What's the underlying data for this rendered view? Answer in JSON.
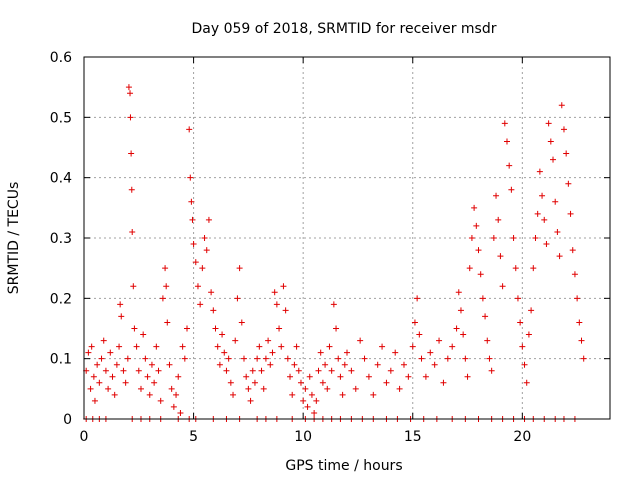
{
  "chart_data": {
    "type": "scatter",
    "title": "Day 059 of 2018, SRMTID for receiver msdr",
    "xlabel": "GPS time / hours",
    "ylabel": "SRMTID / TECUs",
    "xlim": [
      0,
      24
    ],
    "ylim": [
      0,
      0.6
    ],
    "x_ticks": [
      0,
      5,
      10,
      15,
      20
    ],
    "y_ticks": [
      0,
      0.1,
      0.2,
      0.3,
      0.4,
      0.5,
      0.6
    ],
    "x_tick_labels": [
      "0",
      "5",
      "10",
      "15",
      "20"
    ],
    "y_tick_labels": [
      "0",
      "0.1",
      "0.2",
      "0.3",
      "0.4",
      "0.5",
      "0.6"
    ],
    "grid": true,
    "marker": "+",
    "color": "#e00000",
    "series": [
      {
        "name": "SRMTID",
        "points": [
          [
            0.1,
            0.08
          ],
          [
            0.2,
            0.11
          ],
          [
            0.3,
            0.05
          ],
          [
            0.35,
            0.12
          ],
          [
            0.45,
            0.07
          ],
          [
            0.5,
            0.03
          ],
          [
            0.6,
            0.09
          ],
          [
            0.7,
            0.06
          ],
          [
            0.8,
            0.1
          ],
          [
            0.9,
            0.13
          ],
          [
            1.0,
            0.08
          ],
          [
            1.1,
            0.05
          ],
          [
            1.2,
            0.11
          ],
          [
            1.3,
            0.07
          ],
          [
            1.4,
            0.04
          ],
          [
            1.5,
            0.09
          ],
          [
            1.6,
            0.12
          ],
          [
            1.65,
            0.19
          ],
          [
            1.7,
            0.17
          ],
          [
            1.8,
            0.08
          ],
          [
            1.9,
            0.06
          ],
          [
            2.0,
            0.1
          ],
          [
            2.05,
            0.55
          ],
          [
            2.1,
            0.54
          ],
          [
            2.12,
            0.5
          ],
          [
            2.15,
            0.44
          ],
          [
            2.18,
            0.38
          ],
          [
            2.2,
            0.31
          ],
          [
            2.25,
            0.22
          ],
          [
            2.3,
            0.15
          ],
          [
            2.4,
            0.12
          ],
          [
            2.5,
            0.08
          ],
          [
            2.6,
            0.05
          ],
          [
            2.7,
            0.14
          ],
          [
            2.8,
            0.1
          ],
          [
            2.9,
            0.07
          ],
          [
            3.0,
            0.04
          ],
          [
            3.1,
            0.09
          ],
          [
            3.2,
            0.06
          ],
          [
            3.3,
            0.12
          ],
          [
            3.4,
            0.08
          ],
          [
            3.5,
            0.03
          ],
          [
            3.6,
            0.2
          ],
          [
            3.7,
            0.25
          ],
          [
            3.75,
            0.22
          ],
          [
            3.8,
            0.16
          ],
          [
            3.9,
            0.09
          ],
          [
            4.0,
            0.05
          ],
          [
            4.1,
            0.02
          ],
          [
            4.2,
            0.04
          ],
          [
            4.3,
            0.07
          ],
          [
            4.4,
            0.01
          ],
          [
            4.5,
            0.12
          ],
          [
            4.6,
            0.1
          ],
          [
            4.7,
            0.15
          ],
          [
            4.8,
            0.48
          ],
          [
            4.85,
            0.4
          ],
          [
            4.9,
            0.36
          ],
          [
            4.95,
            0.33
          ],
          [
            5.0,
            0.29
          ],
          [
            5.1,
            0.26
          ],
          [
            5.2,
            0.22
          ],
          [
            5.3,
            0.19
          ],
          [
            5.4,
            0.25
          ],
          [
            5.5,
            0.3
          ],
          [
            5.6,
            0.28
          ],
          [
            5.7,
            0.33
          ],
          [
            5.8,
            0.21
          ],
          [
            5.9,
            0.18
          ],
          [
            6.0,
            0.15
          ],
          [
            6.1,
            0.12
          ],
          [
            6.2,
            0.09
          ],
          [
            6.3,
            0.14
          ],
          [
            6.4,
            0.11
          ],
          [
            6.5,
            0.08
          ],
          [
            6.6,
            0.1
          ],
          [
            6.7,
            0.06
          ],
          [
            6.8,
            0.04
          ],
          [
            6.9,
            0.13
          ],
          [
            7.0,
            0.2
          ],
          [
            7.1,
            0.25
          ],
          [
            7.2,
            0.16
          ],
          [
            7.3,
            0.1
          ],
          [
            7.4,
            0.07
          ],
          [
            7.5,
            0.05
          ],
          [
            7.6,
            0.03
          ],
          [
            7.7,
            0.08
          ],
          [
            7.8,
            0.06
          ],
          [
            7.9,
            0.1
          ],
          [
            8.0,
            0.12
          ],
          [
            8.1,
            0.08
          ],
          [
            8.2,
            0.05
          ],
          [
            8.3,
            0.1
          ],
          [
            8.4,
            0.13
          ],
          [
            8.5,
            0.09
          ],
          [
            8.6,
            0.11
          ],
          [
            8.7,
            0.21
          ],
          [
            8.8,
            0.19
          ],
          [
            8.9,
            0.15
          ],
          [
            9.0,
            0.12
          ],
          [
            9.1,
            0.22
          ],
          [
            9.2,
            0.18
          ],
          [
            9.3,
            0.1
          ],
          [
            9.4,
            0.07
          ],
          [
            9.5,
            0.04
          ],
          [
            9.6,
            0.09
          ],
          [
            9.7,
            0.12
          ],
          [
            9.8,
            0.08
          ],
          [
            9.9,
            0.06
          ],
          [
            10.0,
            0.03
          ],
          [
            10.1,
            0.05
          ],
          [
            10.2,
            0.02
          ],
          [
            10.3,
            0.07
          ],
          [
            10.4,
            0.04
          ],
          [
            10.5,
            0.01
          ],
          [
            10.6,
            0.03
          ],
          [
            10.7,
            0.08
          ],
          [
            10.8,
            0.11
          ],
          [
            10.9,
            0.06
          ],
          [
            11.0,
            0.09
          ],
          [
            11.1,
            0.05
          ],
          [
            11.2,
            0.12
          ],
          [
            11.3,
            0.08
          ],
          [
            11.4,
            0.19
          ],
          [
            11.5,
            0.15
          ],
          [
            11.6,
            0.1
          ],
          [
            11.7,
            0.07
          ],
          [
            11.8,
            0.04
          ],
          [
            11.9,
            0.09
          ],
          [
            12.0,
            0.11
          ],
          [
            12.2,
            0.08
          ],
          [
            12.4,
            0.05
          ],
          [
            12.6,
            0.13
          ],
          [
            12.8,
            0.1
          ],
          [
            13.0,
            0.07
          ],
          [
            13.2,
            0.04
          ],
          [
            13.4,
            0.09
          ],
          [
            13.6,
            0.12
          ],
          [
            13.8,
            0.06
          ],
          [
            14.0,
            0.08
          ],
          [
            14.2,
            0.11
          ],
          [
            14.4,
            0.05
          ],
          [
            14.6,
            0.09
          ],
          [
            14.8,
            0.07
          ],
          [
            15.0,
            0.12
          ],
          [
            15.1,
            0.16
          ],
          [
            15.2,
            0.2
          ],
          [
            15.3,
            0.14
          ],
          [
            15.4,
            0.1
          ],
          [
            15.6,
            0.07
          ],
          [
            15.8,
            0.11
          ],
          [
            16.0,
            0.09
          ],
          [
            16.2,
            0.13
          ],
          [
            16.4,
            0.06
          ],
          [
            16.6,
            0.1
          ],
          [
            16.8,
            0.12
          ],
          [
            17.0,
            0.15
          ],
          [
            17.1,
            0.21
          ],
          [
            17.2,
            0.18
          ],
          [
            17.3,
            0.14
          ],
          [
            17.4,
            0.1
          ],
          [
            17.5,
            0.07
          ],
          [
            17.6,
            0.25
          ],
          [
            17.7,
            0.3
          ],
          [
            17.8,
            0.35
          ],
          [
            17.9,
            0.32
          ],
          [
            18.0,
            0.28
          ],
          [
            18.1,
            0.24
          ],
          [
            18.2,
            0.2
          ],
          [
            18.3,
            0.17
          ],
          [
            18.4,
            0.13
          ],
          [
            18.5,
            0.1
          ],
          [
            18.6,
            0.08
          ],
          [
            18.7,
            0.3
          ],
          [
            18.8,
            0.37
          ],
          [
            18.9,
            0.33
          ],
          [
            19.0,
            0.27
          ],
          [
            19.1,
            0.22
          ],
          [
            19.2,
            0.49
          ],
          [
            19.3,
            0.46
          ],
          [
            19.4,
            0.42
          ],
          [
            19.5,
            0.38
          ],
          [
            19.6,
            0.3
          ],
          [
            19.7,
            0.25
          ],
          [
            19.8,
            0.2
          ],
          [
            19.9,
            0.16
          ],
          [
            20.0,
            0.12
          ],
          [
            20.1,
            0.09
          ],
          [
            20.2,
            0.06
          ],
          [
            20.3,
            0.14
          ],
          [
            20.4,
            0.18
          ],
          [
            20.5,
            0.25
          ],
          [
            20.6,
            0.3
          ],
          [
            20.7,
            0.34
          ],
          [
            20.8,
            0.41
          ],
          [
            20.9,
            0.37
          ],
          [
            21.0,
            0.33
          ],
          [
            21.1,
            0.29
          ],
          [
            21.2,
            0.49
          ],
          [
            21.3,
            0.46
          ],
          [
            21.4,
            0.43
          ],
          [
            21.5,
            0.36
          ],
          [
            21.6,
            0.31
          ],
          [
            21.7,
            0.27
          ],
          [
            21.8,
            0.52
          ],
          [
            21.9,
            0.48
          ],
          [
            22.0,
            0.44
          ],
          [
            22.1,
            0.39
          ],
          [
            22.2,
            0.34
          ],
          [
            22.3,
            0.28
          ],
          [
            22.4,
            0.24
          ],
          [
            22.5,
            0.2
          ],
          [
            22.6,
            0.16
          ],
          [
            22.7,
            0.13
          ],
          [
            22.8,
            0.1
          ]
        ],
        "zero_points": [
          0.1,
          0.4,
          0.7,
          1.0,
          2.2,
          2.6,
          3.0,
          3.5,
          4.3,
          4.8,
          5.1,
          5.9,
          6.5,
          7.1,
          7.9,
          8.3,
          8.8,
          9.5,
          10.1,
          10.5,
          10.9,
          11.3,
          11.7,
          12.2,
          12.7,
          13.2,
          13.8,
          14.3,
          14.9,
          15.5,
          16.1,
          16.8,
          17.4,
          18.0,
          18.6,
          19.1,
          19.6,
          20.1,
          20.5,
          21.0,
          21.5,
          21.9,
          22.4
        ]
      }
    ]
  }
}
